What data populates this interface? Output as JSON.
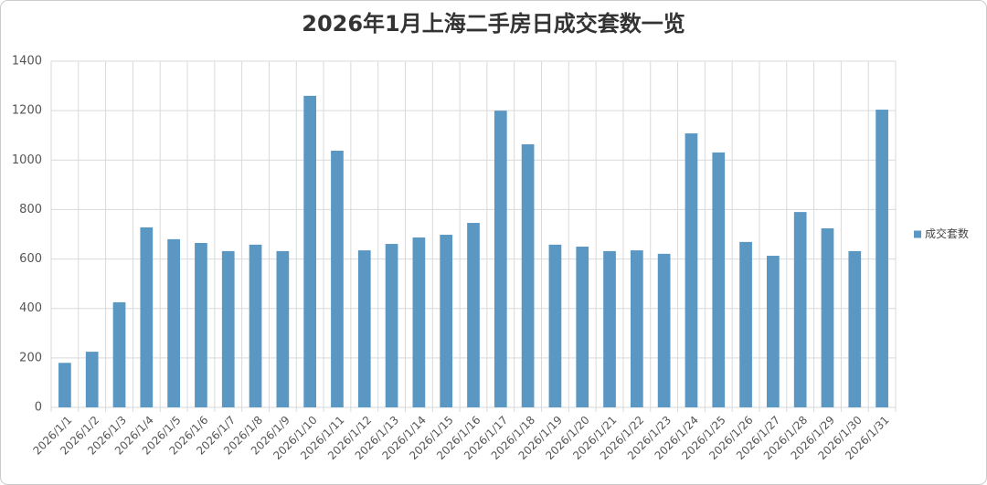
{
  "chart_data": {
    "type": "bar",
    "title": "2026年1月上海二手房日成交套数一览",
    "categories": [
      "2026/1/1",
      "2026/1/2",
      "2026/1/3",
      "2026/1/4",
      "2026/1/5",
      "2026/1/6",
      "2026/1/7",
      "2026/1/8",
      "2026/1/9",
      "2026/1/10",
      "2026/1/11",
      "2026/1/12",
      "2026/1/13",
      "2026/1/14",
      "2026/1/15",
      "2026/1/16",
      "2026/1/17",
      "2026/1/18",
      "2026/1/19",
      "2026/1/20",
      "2026/1/21",
      "2026/1/22",
      "2026/1/23",
      "2026/1/24",
      "2026/1/25",
      "2026/1/26",
      "2026/1/27",
      "2026/1/28",
      "2026/1/29",
      "2026/1/30",
      "2026/1/31"
    ],
    "series": [
      {
        "name": "成交套数",
        "color": "#5b97c3",
        "values": [
          180,
          225,
          425,
          728,
          680,
          665,
          632,
          658,
          632,
          1260,
          1038,
          635,
          661,
          687,
          698,
          746,
          1200,
          1064,
          658,
          650,
          632,
          635,
          621,
          1108,
          1031,
          669,
          613,
          790,
          724,
          632,
          1204
        ]
      }
    ],
    "ylim": [
      0,
      1400
    ],
    "yticks": [
      0,
      200,
      400,
      600,
      800,
      1000,
      1200,
      1400
    ],
    "grid": true,
    "legend": "right"
  }
}
